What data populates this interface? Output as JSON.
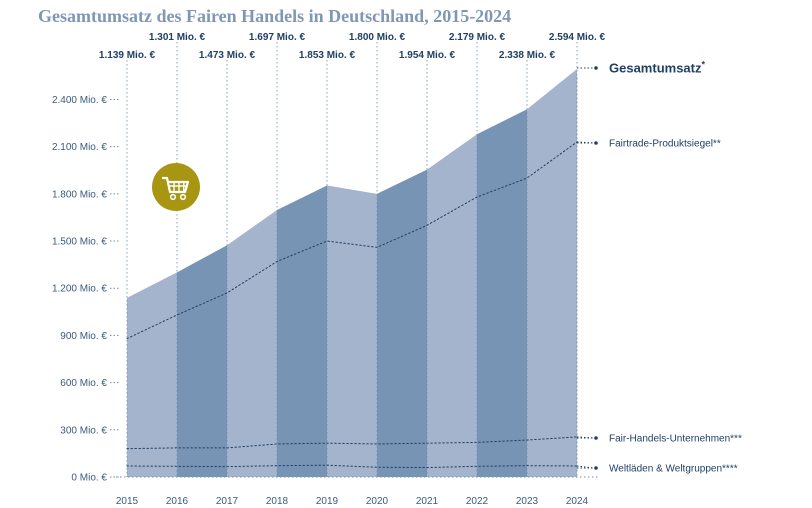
{
  "chart_data": {
    "type": "area",
    "title": "Gesamtumsatz des Fairen Handels in Deutschland, 2015-2024",
    "x": [
      "2015",
      "2016",
      "2017",
      "2018",
      "2019",
      "2020",
      "2021",
      "2022",
      "2023",
      "2024"
    ],
    "ylim": [
      0,
      2600
    ],
    "yticks": [
      {
        "value": 0,
        "label": "0 Mio. €"
      },
      {
        "value": 300,
        "label": "300 Mio. €"
      },
      {
        "value": 600,
        "label": "600 Mio. €"
      },
      {
        "value": 900,
        "label": "900 Mio. €"
      },
      {
        "value": 1200,
        "label": "1.200 Mio. €"
      },
      {
        "value": 1500,
        "label": "1.500 Mio. €"
      },
      {
        "value": 1800,
        "label": "1.800 Mio. €"
      },
      {
        "value": 2100,
        "label": "2.100 Mio. €"
      },
      {
        "value": 2400,
        "label": "2.400 Mio. €"
      }
    ],
    "series": [
      {
        "name": "Gesamtumsatz",
        "legend": "Gesamtumsatz",
        "legend_mark": "*",
        "values": [
          1139,
          1301,
          1473,
          1697,
          1853,
          1800,
          1954,
          2179,
          2338,
          2594
        ],
        "labels": [
          "1.139 Mio. €",
          "1.301 Mio. €",
          "1.473 Mio. €",
          "1.697 Mio. €",
          "1.853 Mio. €",
          "1.800 Mio. €",
          "1.954 Mio. €",
          "2.179 Mio. €",
          "2.338 Mio. €",
          "2.594 Mio. €"
        ]
      },
      {
        "name": "Fairtrade-Produktsiegel",
        "legend": "Fairtrade-Produktsiegel**",
        "values": [
          880,
          1030,
          1170,
          1370,
          1500,
          1460,
          1600,
          1780,
          1900,
          2130
        ]
      },
      {
        "name": "Fair-Handels-Unternehmen",
        "legend": "Fair-Handels-Unternehmen***",
        "values": [
          180,
          185,
          185,
          210,
          215,
          210,
          215,
          220,
          235,
          255
        ]
      },
      {
        "name": "Weltläden & Weltgruppen",
        "legend": "Weltläden & Weltgruppen****",
        "values": [
          70,
          68,
          66,
          72,
          75,
          62,
          60,
          68,
          72,
          70
        ]
      }
    ],
    "colors": {
      "band_light": "#a3b4cc",
      "band_dark": "#7894b4",
      "line_dark": "#1f3f66",
      "grid": "#6d8cb0",
      "cart_icon": "#a89613"
    },
    "icons": [
      "shopping-cart-icon"
    ]
  }
}
